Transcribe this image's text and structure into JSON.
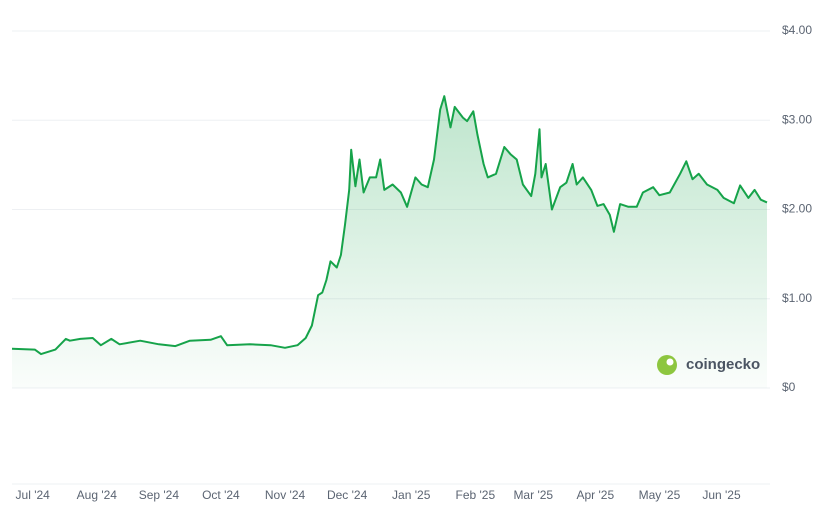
{
  "chart_data": {
    "type": "line",
    "watermark": "coingecko",
    "color": "#16a34a",
    "grid": true,
    "xlim": [
      0,
      365
    ],
    "ylim": [
      0,
      4
    ],
    "yticks": [
      {
        "value": 0,
        "label": "$0"
      },
      {
        "value": 1,
        "label": "$1.00"
      },
      {
        "value": 2,
        "label": "$2.00"
      },
      {
        "value": 3,
        "label": "$3.00"
      },
      {
        "value": 4,
        "label": "$4.00"
      }
    ],
    "xticks": [
      {
        "value": 10,
        "label": "Jul '24"
      },
      {
        "value": 41,
        "label": "Aug '24"
      },
      {
        "value": 71,
        "label": "Sep '24"
      },
      {
        "value": 101,
        "label": "Oct '24"
      },
      {
        "value": 132,
        "label": "Nov '24"
      },
      {
        "value": 162,
        "label": "Dec '24"
      },
      {
        "value": 193,
        "label": "Jan '25"
      },
      {
        "value": 224,
        "label": "Feb '25"
      },
      {
        "value": 252,
        "label": "Mar '25"
      },
      {
        "value": 282,
        "label": "Apr '25"
      },
      {
        "value": 313,
        "label": "May '25"
      },
      {
        "value": 343,
        "label": "Jun '25"
      }
    ],
    "x": [
      0,
      11,
      14,
      21,
      26,
      28,
      33,
      39,
      43,
      48,
      52,
      62,
      71,
      79,
      86,
      96,
      101,
      104,
      115,
      125,
      132,
      138,
      142,
      145,
      148,
      150,
      152,
      154,
      157,
      159,
      161,
      163,
      164,
      166,
      168,
      170,
      173,
      176,
      178,
      180,
      184,
      188,
      191,
      195,
      198,
      201,
      204,
      207,
      209,
      212,
      214,
      218,
      220,
      223,
      225,
      228,
      230,
      234,
      238,
      241,
      244,
      247,
      251,
      253,
      255,
      256,
      258,
      261,
      265,
      268,
      271,
      273,
      276,
      280,
      283,
      286,
      289,
      291,
      294,
      298,
      302,
      305,
      310,
      313,
      318,
      323,
      326,
      329,
      332,
      336,
      341,
      344,
      349,
      352,
      356,
      359,
      362,
      365
    ],
    "series": [
      {
        "color": "#16a34a",
        "values": [
          0.44,
          0.43,
          0.38,
          0.43,
          0.55,
          0.53,
          0.55,
          0.56,
          0.48,
          0.55,
          0.49,
          0.53,
          0.49,
          0.47,
          0.53,
          0.54,
          0.58,
          0.48,
          0.49,
          0.48,
          0.45,
          0.48,
          0.56,
          0.7,
          1.04,
          1.07,
          1.21,
          1.42,
          1.35,
          1.49,
          1.83,
          2.22,
          2.67,
          2.26,
          2.56,
          2.19,
          2.36,
          2.36,
          2.56,
          2.22,
          2.28,
          2.19,
          2.03,
          2.36,
          2.28,
          2.25,
          2.56,
          3.12,
          3.27,
          2.92,
          3.15,
          3.03,
          2.99,
          3.1,
          2.84,
          2.51,
          2.36,
          2.4,
          2.7,
          2.62,
          2.56,
          2.28,
          2.15,
          2.4,
          2.9,
          2.36,
          2.51,
          2.0,
          2.25,
          2.3,
          2.51,
          2.28,
          2.36,
          2.22,
          2.04,
          2.06,
          1.94,
          1.75,
          2.06,
          2.03,
          2.03,
          2.19,
          2.25,
          2.16,
          2.19,
          2.4,
          2.54,
          2.34,
          2.4,
          2.28,
          2.22,
          2.13,
          2.07,
          2.27,
          2.13,
          2.22,
          2.11,
          2.08
        ]
      }
    ]
  }
}
